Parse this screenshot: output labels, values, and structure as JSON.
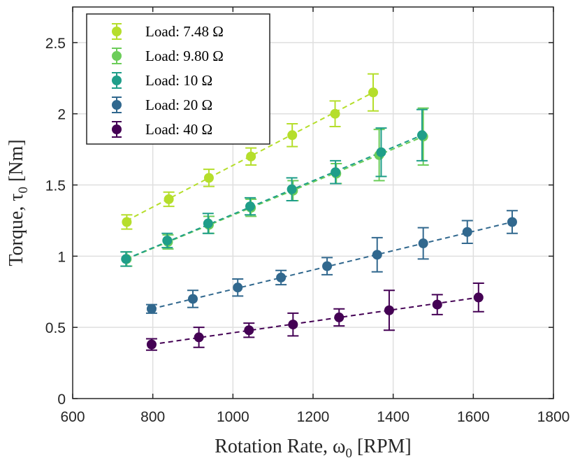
{
  "chart_data": {
    "type": "scatter",
    "xlabel": "Rotation Rate, ω",
    "xlabel_sub": "0",
    "xlabel_unit": "[RPM]",
    "ylabel": "Torque, τ",
    "ylabel_sub": "0",
    "ylabel_unit": "[Nm]",
    "xlim": [
      600,
      1800
    ],
    "ylim": [
      0,
      2.75
    ],
    "xticks": [
      600,
      800,
      1000,
      1200,
      1400,
      1600,
      1800
    ],
    "xtick_labels": [
      "600",
      "800",
      "1000",
      "1200",
      "1400",
      "1600",
      "1800"
    ],
    "yticks": [
      0,
      0.5,
      1,
      1.5,
      2,
      2.5
    ],
    "ytick_labels": [
      "0",
      "0.5",
      "1",
      "1.5",
      "2",
      "2.5"
    ],
    "grid": true,
    "legend_position": "top-left",
    "series": [
      {
        "name": "Load: 7.48 Ω",
        "color": "#b5de2b",
        "x": [
          735,
          840,
          940,
          1045,
          1148,
          1255,
          1350
        ],
        "y": [
          1.24,
          1.4,
          1.55,
          1.7,
          1.85,
          2.0,
          2.15
        ],
        "err": [
          0.05,
          0.05,
          0.06,
          0.06,
          0.08,
          0.09,
          0.13
        ],
        "fit": [
          [
            735,
            1.25
          ],
          [
            1350,
            2.15
          ]
        ]
      },
      {
        "name": "Load: 9.80 Ω",
        "color": "#6ccd5a",
        "x": [
          735,
          838,
          940,
          1045,
          1150,
          1258,
          1365,
          1475
        ],
        "y": [
          0.98,
          1.1,
          1.22,
          1.34,
          1.46,
          1.58,
          1.71,
          1.84
        ],
        "err": [
          0.05,
          0.05,
          0.06,
          0.06,
          0.07,
          0.07,
          0.18,
          0.2
        ],
        "fit": [
          [
            735,
            0.98
          ],
          [
            1475,
            1.84
          ]
        ]
      },
      {
        "name": "Load: 10 Ω",
        "color": "#1f9e89",
        "x": [
          733,
          836,
          938,
          1043,
          1147,
          1256,
          1370,
          1472
        ],
        "y": [
          0.98,
          1.11,
          1.23,
          1.35,
          1.47,
          1.59,
          1.73,
          1.85
        ],
        "err": [
          0.05,
          0.05,
          0.07,
          0.06,
          0.08,
          0.08,
          0.17,
          0.18
        ],
        "fit": [
          [
            733,
            0.98
          ],
          [
            1472,
            1.85
          ]
        ]
      },
      {
        "name": "Load: 20 Ω",
        "color": "#31688e",
        "x": [
          797,
          900,
          1012,
          1120,
          1235,
          1360,
          1475,
          1585,
          1697
        ],
        "y": [
          0.63,
          0.7,
          0.78,
          0.85,
          0.93,
          1.01,
          1.09,
          1.17,
          1.24
        ],
        "err": [
          0.03,
          0.06,
          0.06,
          0.05,
          0.06,
          0.12,
          0.11,
          0.08,
          0.08
        ],
        "fit": [
          [
            797,
            0.63
          ],
          [
            1697,
            1.24
          ]
        ]
      },
      {
        "name": "Load: 40 Ω",
        "color": "#440154",
        "x": [
          797,
          915,
          1040,
          1150,
          1265,
          1390,
          1510,
          1613
        ],
        "y": [
          0.38,
          0.43,
          0.48,
          0.52,
          0.57,
          0.62,
          0.66,
          0.71
        ],
        "err": [
          0.04,
          0.07,
          0.05,
          0.08,
          0.06,
          0.14,
          0.07,
          0.1
        ],
        "fit": [
          [
            797,
            0.38
          ],
          [
            1613,
            0.71
          ]
        ]
      }
    ]
  }
}
